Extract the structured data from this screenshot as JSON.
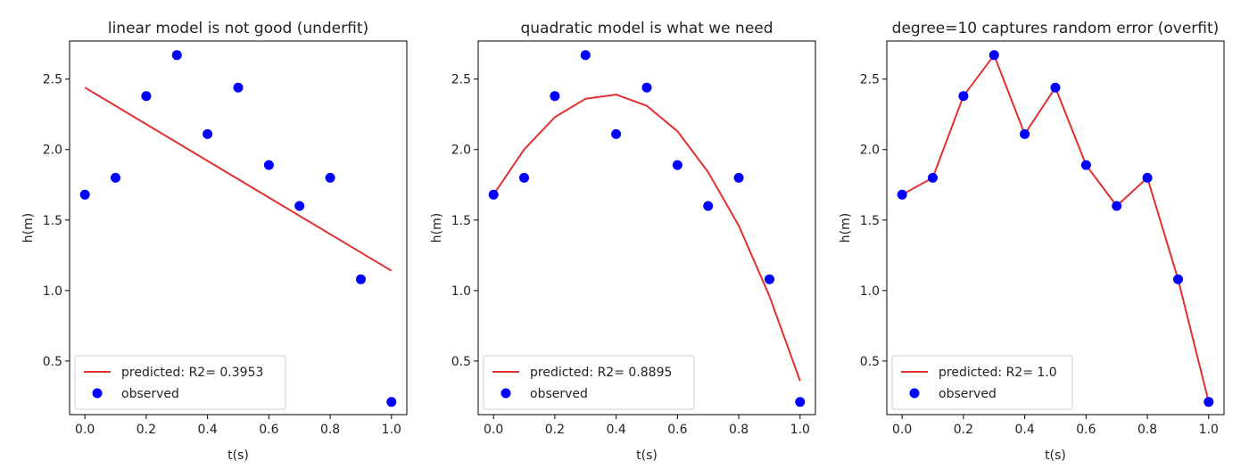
{
  "chart_data": [
    {
      "type": "scatter",
      "title": "linear model is not good (underfit)",
      "xlabel": "t(s)",
      "ylabel": "h(m)",
      "xlim": [
        -0.05,
        1.05
      ],
      "ylim": [
        0.12,
        2.77
      ],
      "xticks": [
        "0.0",
        "0.2",
        "0.4",
        "0.6",
        "0.8",
        "1.0"
      ],
      "yticks": [
        "0.5",
        "1.0",
        "1.5",
        "2.0",
        "2.5"
      ],
      "grid": false,
      "legend_position": "lower-left",
      "series": [
        {
          "name": "predicted: R2= 0.3953",
          "kind": "line",
          "color": "#e03030",
          "x": [
            0.0,
            1.0
          ],
          "y": [
            2.44,
            1.14
          ]
        },
        {
          "name": "observed",
          "kind": "scatter",
          "color": "#0000ff",
          "x": [
            0.0,
            0.1,
            0.2,
            0.3,
            0.4,
            0.5,
            0.6,
            0.7,
            0.8,
            0.9,
            1.0
          ],
          "y": [
            1.68,
            1.8,
            2.38,
            2.67,
            2.11,
            2.44,
            1.89,
            1.6,
            1.8,
            1.08,
            0.21
          ]
        }
      ]
    },
    {
      "type": "scatter",
      "title": "quadratic model is what we need",
      "xlabel": "t(s)",
      "ylabel": "h(m)",
      "xlim": [
        -0.05,
        1.05
      ],
      "ylim": [
        0.12,
        2.77
      ],
      "xticks": [
        "0.0",
        "0.2",
        "0.4",
        "0.6",
        "0.8",
        "1.0"
      ],
      "yticks": [
        "0.5",
        "1.0",
        "1.5",
        "2.0",
        "2.5"
      ],
      "grid": false,
      "legend_position": "lower-left",
      "series": [
        {
          "name": "predicted: R2= 0.8895",
          "kind": "line",
          "color": "#e03030",
          "x": [
            0.0,
            0.1,
            0.2,
            0.3,
            0.4,
            0.5,
            0.6,
            0.7,
            0.8,
            0.9,
            1.0
          ],
          "y": [
            1.68,
            2.0,
            2.23,
            2.36,
            2.39,
            2.31,
            2.13,
            1.84,
            1.46,
            0.96,
            0.36
          ]
        },
        {
          "name": "observed",
          "kind": "scatter",
          "color": "#0000ff",
          "x": [
            0.0,
            0.1,
            0.2,
            0.3,
            0.4,
            0.5,
            0.6,
            0.7,
            0.8,
            0.9,
            1.0
          ],
          "y": [
            1.68,
            1.8,
            2.38,
            2.67,
            2.11,
            2.44,
            1.89,
            1.6,
            1.8,
            1.08,
            0.21
          ]
        }
      ]
    },
    {
      "type": "scatter",
      "title": "degree=10 captures random error (overfit)",
      "xlabel": "t(s)",
      "ylabel": "h(m)",
      "xlim": [
        -0.05,
        1.05
      ],
      "ylim": [
        0.12,
        2.77
      ],
      "xticks": [
        "0.0",
        "0.2",
        "0.4",
        "0.6",
        "0.8",
        "1.0"
      ],
      "yticks": [
        "0.5",
        "1.0",
        "1.5",
        "2.0",
        "2.5"
      ],
      "grid": false,
      "legend_position": "lower-left",
      "series": [
        {
          "name": "predicted: R2= 1.0",
          "kind": "line",
          "color": "#e03030",
          "x": [
            0.0,
            0.1,
            0.2,
            0.3,
            0.4,
            0.5,
            0.6,
            0.7,
            0.8,
            0.9,
            1.0
          ],
          "y": [
            1.68,
            1.8,
            2.38,
            2.67,
            2.11,
            2.44,
            1.89,
            1.6,
            1.8,
            1.08,
            0.21
          ]
        },
        {
          "name": "observed",
          "kind": "scatter",
          "color": "#0000ff",
          "x": [
            0.0,
            0.1,
            0.2,
            0.3,
            0.4,
            0.5,
            0.6,
            0.7,
            0.8,
            0.9,
            1.0
          ],
          "y": [
            1.68,
            1.8,
            2.38,
            2.67,
            2.11,
            2.44,
            1.89,
            1.6,
            1.8,
            1.08,
            0.21
          ]
        }
      ]
    }
  ]
}
